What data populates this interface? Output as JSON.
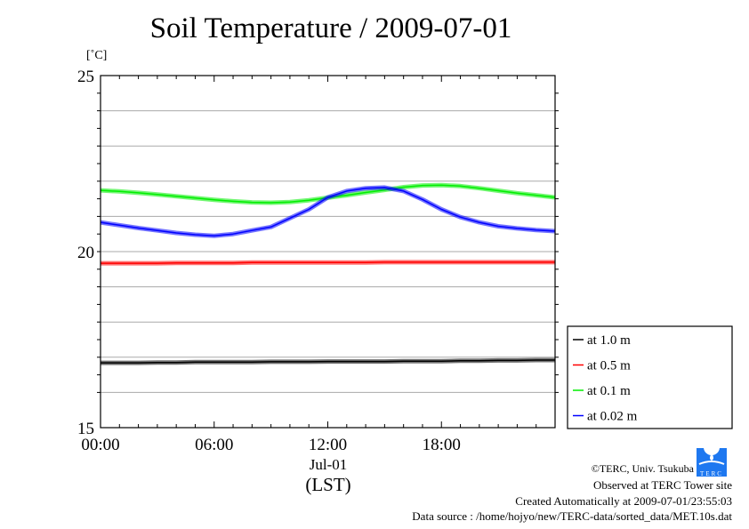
{
  "chart_data": {
    "type": "line",
    "title": "Soil Temperature / 2009-07-01",
    "ylabel": "[˚C]",
    "xlabel": "(LST)",
    "date_label": "Jul-01",
    "ylim": [
      15,
      25
    ],
    "xlim": [
      0,
      24
    ],
    "yticks": [
      "25",
      "20",
      "15"
    ],
    "ytick_values": [
      25,
      20,
      15
    ],
    "xticks": [
      "00:00",
      "06:00",
      "12:00",
      "18:00"
    ],
    "xtick_values": [
      0,
      6,
      12,
      18
    ],
    "grid": true,
    "legend_position": "right",
    "x": [
      0,
      1,
      2,
      3,
      4,
      5,
      6,
      7,
      8,
      9,
      10,
      11,
      12,
      13,
      14,
      15,
      16,
      17,
      18,
      19,
      20,
      21,
      22,
      23,
      24
    ],
    "series": [
      {
        "name": "at 1.0 m",
        "color": "#000000",
        "values": [
          16.84,
          16.84,
          16.84,
          16.85,
          16.85,
          16.86,
          16.86,
          16.86,
          16.86,
          16.87,
          16.87,
          16.87,
          16.88,
          16.88,
          16.88,
          16.88,
          16.89,
          16.89,
          16.89,
          16.9,
          16.9,
          16.91,
          16.91,
          16.92,
          16.92
        ]
      },
      {
        "name": "at 0.5 m",
        "color": "#ff0000",
        "values": [
          19.67,
          19.67,
          19.67,
          19.67,
          19.68,
          19.68,
          19.68,
          19.68,
          19.69,
          19.69,
          19.69,
          19.69,
          19.69,
          19.69,
          19.69,
          19.7,
          19.7,
          19.7,
          19.7,
          19.7,
          19.7,
          19.7,
          19.7,
          19.7,
          19.7
        ]
      },
      {
        "name": "at 0.1 m",
        "color": "#00ee00",
        "values": [
          21.74,
          21.71,
          21.67,
          21.62,
          21.57,
          21.52,
          21.47,
          21.43,
          21.4,
          21.39,
          21.41,
          21.46,
          21.53,
          21.6,
          21.68,
          21.75,
          21.83,
          21.88,
          21.89,
          21.86,
          21.8,
          21.73,
          21.66,
          21.6,
          21.54
        ]
      },
      {
        "name": "at 0.02 m",
        "color": "#0000ff",
        "values": [
          20.83,
          20.75,
          20.67,
          20.6,
          20.53,
          20.48,
          20.45,
          20.5,
          20.6,
          20.7,
          20.95,
          21.2,
          21.54,
          21.72,
          21.8,
          21.82,
          21.72,
          21.48,
          21.2,
          20.98,
          20.83,
          20.72,
          20.66,
          20.61,
          20.58
        ]
      }
    ]
  },
  "footer": {
    "copyright": "©TERC, Univ. Tsukuba",
    "observed": "Observed at TERC Tower site",
    "created": "Created Automatically at 2009-07-01/23:55:03",
    "source": "Data source : /home/hojyo/new/TERC-data/sorted_data/MET.10s.dat",
    "logo_text": "TERC"
  }
}
